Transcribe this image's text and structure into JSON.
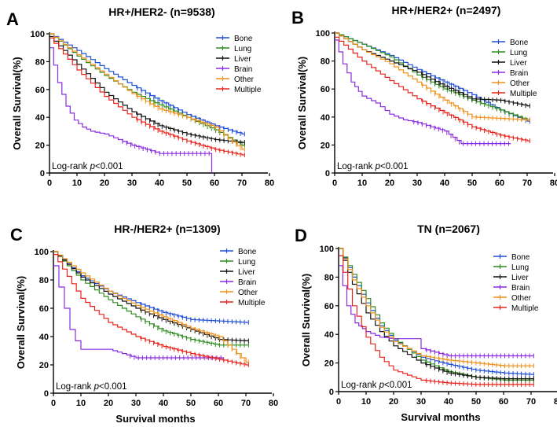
{
  "figure": {
    "common_xlabel": "Survival months"
  },
  "legend_colors": {
    "Bone": "#1f4fd8",
    "Lung": "#2e8b1e",
    "Liver": "#111111",
    "Brain": "#8a2be2",
    "Other": "#f0901c",
    "Multiple": "#e8231c"
  },
  "chart_data": [
    {
      "panel": "A",
      "type": "line",
      "title": "HR+/HER2- (n=9538)",
      "ylabel": "Overall Survival(%)",
      "xlabel": "",
      "xlim": [
        0,
        80
      ],
      "ylim": [
        0,
        100
      ],
      "xticks": [
        "0",
        "10",
        "20",
        "30",
        "40",
        "50",
        "60",
        "70",
        "80"
      ],
      "yticks": [
        "0",
        "20",
        "40",
        "60",
        "80",
        "100"
      ],
      "annotation": {
        "prefix": "Log-rank ",
        "p": "p",
        "suffix": "<0.001"
      },
      "legend": [
        "Bone",
        "Lung",
        "Liver",
        "Brain",
        "Other",
        "Multiple"
      ],
      "series": [
        {
          "name": "Bone",
          "x": [
            0,
            10,
            20,
            30,
            40,
            50,
            60,
            70,
            71
          ],
          "y": [
            100,
            88,
            75,
            63,
            52,
            42,
            34,
            28,
            28
          ]
        },
        {
          "name": "Lung",
          "x": [
            0,
            10,
            20,
            30,
            40,
            50,
            60,
            70,
            71
          ],
          "y": [
            100,
            84,
            70,
            58,
            49,
            40,
            31,
            20,
            20
          ]
        },
        {
          "name": "Liver",
          "x": [
            0,
            10,
            20,
            30,
            40,
            50,
            60,
            70,
            71
          ],
          "y": [
            98,
            78,
            58,
            44,
            34,
            28,
            24,
            22,
            22
          ]
        },
        {
          "name": "Brain",
          "x": [
            0,
            3,
            6,
            9,
            12,
            15,
            20,
            30,
            40,
            50,
            58,
            59,
            59
          ],
          "y": [
            90,
            65,
            48,
            38,
            33,
            30,
            28,
            20,
            14,
            14,
            14,
            14,
            0
          ]
        },
        {
          "name": "Other",
          "x": [
            0,
            10,
            20,
            30,
            40,
            50,
            60,
            70,
            71
          ],
          "y": [
            100,
            85,
            71,
            57,
            46,
            40,
            33,
            17,
            17
          ]
        },
        {
          "name": "Multiple",
          "x": [
            0,
            10,
            20,
            30,
            40,
            50,
            60,
            70,
            71
          ],
          "y": [
            97,
            74,
            55,
            40,
            30,
            23,
            17,
            13,
            13
          ]
        }
      ]
    },
    {
      "panel": "B",
      "type": "line",
      "title": "HR+/HER2+ (n=2497)",
      "ylabel": "Overall Survival(%)",
      "xlabel": "",
      "xlim": [
        0,
        80
      ],
      "ylim": [
        0,
        100
      ],
      "xticks": [
        "0",
        "10",
        "20",
        "30",
        "40",
        "50",
        "60",
        "70",
        "80"
      ],
      "yticks": [
        "0",
        "20",
        "40",
        "60",
        "80",
        "100"
      ],
      "annotation": {
        "prefix": "Log-rank ",
        "p": "p",
        "suffix": "<0.001"
      },
      "legend": [
        "Bone",
        "Lung",
        "Liver",
        "Brain",
        "Other",
        "Multiple"
      ],
      "series": [
        {
          "name": "Bone",
          "x": [
            0,
            10,
            20,
            30,
            40,
            50,
            60,
            70,
            71
          ],
          "y": [
            100,
            92,
            84,
            74,
            65,
            56,
            45,
            37,
            37
          ]
        },
        {
          "name": "Lung",
          "x": [
            0,
            10,
            20,
            30,
            40,
            50,
            60,
            70,
            71
          ],
          "y": [
            100,
            92,
            83,
            70,
            60,
            52,
            45,
            38,
            38
          ]
        },
        {
          "name": "Liver",
          "x": [
            0,
            10,
            20,
            30,
            40,
            50,
            60,
            70,
            71
          ],
          "y": [
            100,
            88,
            80,
            72,
            62,
            53,
            52,
            48,
            48
          ]
        },
        {
          "name": "Brain",
          "x": [
            0,
            3,
            6,
            10,
            15,
            20,
            25,
            30,
            40,
            46,
            50,
            64
          ],
          "y": [
            95,
            78,
            65,
            55,
            50,
            42,
            38,
            36,
            30,
            21,
            21,
            21
          ]
        },
        {
          "name": "Other",
          "x": [
            0,
            10,
            20,
            30,
            40,
            50,
            60,
            70,
            71
          ],
          "y": [
            100,
            88,
            78,
            65,
            52,
            40,
            39,
            38,
            38
          ]
        },
        {
          "name": "Multiple",
          "x": [
            0,
            10,
            20,
            30,
            40,
            50,
            60,
            70,
            71
          ],
          "y": [
            97,
            80,
            66,
            53,
            43,
            33,
            27,
            23,
            23
          ]
        }
      ]
    },
    {
      "panel": "C",
      "type": "line",
      "title": "HR-/HER2+ (n=1309)",
      "ylabel": "Overall Survival(%)",
      "xlabel": "Survival months",
      "xlim": [
        0,
        80
      ],
      "ylim": [
        0,
        100
      ],
      "xticks": [
        "0",
        "10",
        "20",
        "30",
        "40",
        "50",
        "60",
        "70",
        "80"
      ],
      "yticks": [
        "0",
        "20",
        "40",
        "60",
        "80",
        "100"
      ],
      "annotation": {
        "prefix": "Log-rank ",
        "p": "p",
        "suffix": "<0.001"
      },
      "legend": [
        "Bone",
        "Lung",
        "Liver",
        "Brain",
        "Other",
        "Multiple"
      ],
      "series": [
        {
          "name": "Bone",
          "x": [
            0,
            10,
            20,
            30,
            40,
            50,
            60,
            70,
            71
          ],
          "y": [
            100,
            83,
            72,
            64,
            57,
            52,
            51,
            50,
            50
          ]
        },
        {
          "name": "Lung",
          "x": [
            0,
            10,
            20,
            30,
            40,
            50,
            60,
            70,
            71
          ],
          "y": [
            100,
            80,
            66,
            54,
            44,
            38,
            34,
            34,
            34
          ]
        },
        {
          "name": "Liver",
          "x": [
            0,
            10,
            20,
            30,
            40,
            50,
            60,
            70,
            71
          ],
          "y": [
            100,
            82,
            70,
            60,
            52,
            45,
            38,
            37,
            37
          ]
        },
        {
          "name": "Brain",
          "x": [
            0,
            2,
            4,
            6,
            8,
            10,
            15,
            20,
            30,
            40,
            50,
            60,
            62
          ],
          "y": [
            90,
            75,
            60,
            45,
            37,
            31,
            31,
            31,
            25,
            25,
            25,
            25,
            25
          ]
        },
        {
          "name": "Other",
          "x": [
            0,
            10,
            20,
            30,
            40,
            50,
            60,
            70,
            71
          ],
          "y": [
            100,
            85,
            72,
            62,
            54,
            46,
            40,
            22,
            22
          ]
        },
        {
          "name": "Multiple",
          "x": [
            0,
            10,
            20,
            30,
            40,
            50,
            60,
            70,
            71
          ],
          "y": [
            98,
            67,
            50,
            40,
            33,
            28,
            24,
            20,
            20
          ]
        }
      ]
    },
    {
      "panel": "D",
      "type": "line",
      "title": "TN (n=2067)",
      "ylabel": "Overall Survival(%)",
      "xlabel": "Survival months",
      "xlim": [
        0,
        80
      ],
      "ylim": [
        0,
        100
      ],
      "xticks": [
        "0",
        "10",
        "20",
        "30",
        "40",
        "50",
        "60",
        "70",
        "80"
      ],
      "yticks": [
        "0",
        "20",
        "40",
        "60",
        "80",
        "100"
      ],
      "annotation": {
        "prefix": "Log-rank ",
        "p": "p",
        "suffix": "<0.001"
      },
      "legend": [
        "Bone",
        "Lung",
        "Liver",
        "Brain",
        "Other",
        "Multiple"
      ],
      "series": [
        {
          "name": "Bone",
          "x": [
            0,
            5,
            10,
            15,
            20,
            30,
            40,
            50,
            60,
            70,
            71
          ],
          "y": [
            100,
            80,
            62,
            46,
            36,
            24,
            19,
            15,
            13,
            12,
            12
          ]
        },
        {
          "name": "Lung",
          "x": [
            0,
            5,
            10,
            15,
            20,
            30,
            40,
            50,
            60,
            70,
            71
          ],
          "y": [
            100,
            82,
            65,
            48,
            37,
            22,
            14,
            10,
            8,
            8,
            8
          ]
        },
        {
          "name": "Liver",
          "x": [
            0,
            5,
            10,
            15,
            20,
            30,
            40,
            50,
            60,
            70,
            71
          ],
          "y": [
            100,
            75,
            55,
            42,
            32,
            20,
            13,
            10,
            9,
            9,
            9
          ]
        },
        {
          "name": "Brain",
          "x": [
            0,
            3,
            6,
            10,
            15,
            20,
            28,
            30,
            40,
            50,
            60,
            70,
            71
          ],
          "y": [
            88,
            60,
            48,
            42,
            38,
            37,
            37,
            30,
            25,
            25,
            25,
            25,
            25
          ]
        },
        {
          "name": "Other",
          "x": [
            0,
            5,
            10,
            15,
            20,
            30,
            40,
            50,
            60,
            70,
            71
          ],
          "y": [
            100,
            78,
            60,
            45,
            35,
            25,
            22,
            20,
            18,
            18,
            18
          ]
        },
        {
          "name": "Multiple",
          "x": [
            0,
            5,
            10,
            15,
            20,
            30,
            40,
            50,
            60,
            70,
            71
          ],
          "y": [
            95,
            60,
            38,
            24,
            15,
            8,
            6,
            5,
            5,
            5,
            5
          ]
        }
      ]
    }
  ]
}
